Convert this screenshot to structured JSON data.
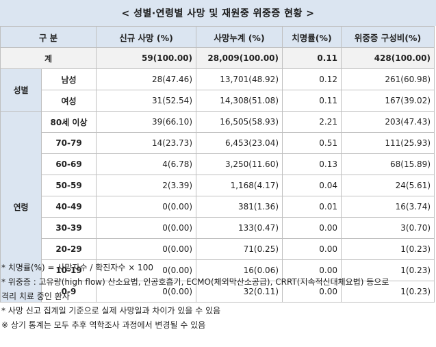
{
  "title": "< 성별·연령별 사망 및 재원중 위중증 현황 >",
  "headers": [
    "구 분",
    "신규 사망 (%)",
    "사망누계 (%)",
    "치명률(%)",
    "위중증 구성비(%)"
  ],
  "total": {
    "label": "계",
    "new_deaths": "59(100.00)",
    "cum_deaths": "28,009(100.00)",
    "fatality": "0.11",
    "critical": "428(100.00)"
  },
  "gender": {
    "label": "성별",
    "rows": [
      {
        "label": "남성",
        "new_deaths": "28(47.46)",
        "cum_deaths": "13,701(48.92)",
        "fatality": "0.12",
        "critical": "261(60.98)"
      },
      {
        "label": "여성",
        "new_deaths": "31(52.54)",
        "cum_deaths": "14,308(51.08)",
        "fatality": "0.11",
        "critical": "167(39.02)"
      }
    ]
  },
  "age": {
    "label": "연령",
    "rows": [
      {
        "label": "80세 이상",
        "new_deaths": "39(66.10)",
        "cum_deaths": "16,505(58.93)",
        "fatality": "2.21",
        "critical": "203(47.43)"
      },
      {
        "label": "70-79",
        "new_deaths": "14(23.73)",
        "cum_deaths": "6,453(23.04)",
        "fatality": "0.51",
        "critical": "111(25.93)"
      },
      {
        "label": "60-69",
        "new_deaths": "4(6.78)",
        "cum_deaths": "3,250(11.60)",
        "fatality": "0.13",
        "critical": "68(15.89)"
      },
      {
        "label": "50-59",
        "new_deaths": "2(3.39)",
        "cum_deaths": "1,168(4.17)",
        "fatality": "0.04",
        "critical": "24(5.61)"
      },
      {
        "label": "40-49",
        "new_deaths": "0(0.00)",
        "cum_deaths": "381(1.36)",
        "fatality": "0.01",
        "critical": "16(3.74)"
      },
      {
        "label": "30-39",
        "new_deaths": "0(0.00)",
        "cum_deaths": "133(0.47)",
        "fatality": "0.00",
        "critical": "3(0.70)"
      },
      {
        "label": "20-29",
        "new_deaths": "0(0.00)",
        "cum_deaths": "71(0.25)",
        "fatality": "0.00",
        "critical": "1(0.23)"
      },
      {
        "label": "10-19",
        "new_deaths": "0(0.00)",
        "cum_deaths": "16(0.06)",
        "fatality": "0.00",
        "critical": "1(0.23)"
      },
      {
        "label": "0-9",
        "new_deaths": "0(0.00)",
        "cum_deaths": "32(0.11)",
        "fatality": "0.00",
        "critical": "1(0.23)"
      }
    ]
  },
  "notes": [
    "* 치명률(%) = 사망자수 / 확진자수 × 100",
    "* 위중증 : 고유량(high flow) 산소요법, 인공호흡기, ECMO(체외막산소공급), CRRT(지속적신대체요법) 등으로",
    "격리 치료 중인 환자",
    "* 사망 신고 집계일 기준으로 실제 사망일과 차이가 있을 수 있음",
    "※ 상기 통계는 모두 추후 역학조사 과정에서 변경될 수 있음"
  ]
}
